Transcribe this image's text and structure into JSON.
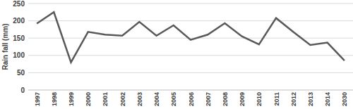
{
  "chart_data": {
    "type": "line",
    "y_label": "Rain fall (mm)",
    "categories": [
      "1997",
      "1998",
      "1999",
      "2000",
      "2001",
      "2002",
      "2003",
      "2004",
      "2005",
      "2006",
      "2007",
      "2008",
      "2009",
      "2010",
      "2011",
      "2012",
      "2013",
      "2014",
      "2030"
    ],
    "values": [
      192,
      225,
      80,
      168,
      160,
      157,
      197,
      157,
      187,
      145,
      160,
      193,
      155,
      132,
      208,
      168,
      130,
      137,
      85
    ],
    "color": "#595959",
    "ylim": [
      0,
      250
    ],
    "yticks": [
      0,
      50,
      100,
      150,
      200,
      250
    ],
    "grid": true
  }
}
